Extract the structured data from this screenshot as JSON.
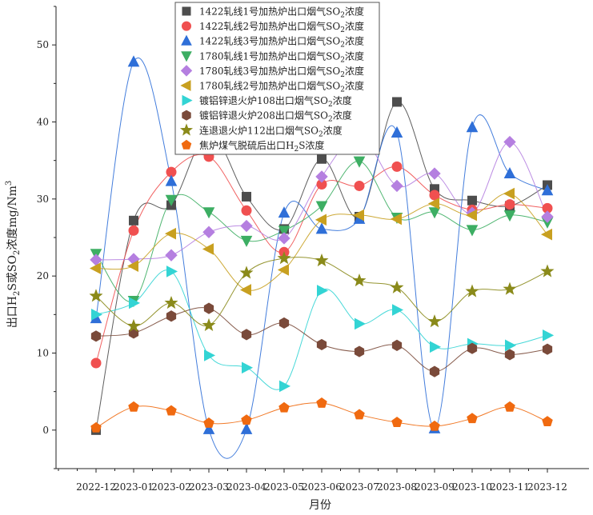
{
  "chart_data": {
    "type": "line",
    "categories": [
      "2022-12",
      "2023-01",
      "2023-02",
      "2023-03",
      "2023-04",
      "2023-05",
      "2023-06",
      "2023-07",
      "2023-08",
      "2023-09",
      "2023-10",
      "2023-11",
      "2023-12"
    ],
    "xlabel": "月份",
    "ylabel": "出口H2S或SO2浓度mg/Nm3",
    "ylabel_parts": {
      "p1": "出口H",
      "s1": "2",
      "p2": "S或SO",
      "s2": "2",
      "p3": "浓度mg/Nm",
      "s3": "3"
    },
    "ylim": [
      -5,
      55
    ],
    "yticks": [
      0,
      10,
      20,
      30,
      40,
      50
    ],
    "grid": false,
    "smooth": true,
    "legend_position": "top",
    "series": [
      {
        "name": "1422轧线1号加热炉出口烟气SO2浓度",
        "legend": {
          "pre": "1422轧线1号加热炉出口烟气SO",
          "sub": "2",
          "post": "浓度"
        },
        "color": "#4d4d4d",
        "marker": "square",
        "values": [
          0,
          27.2,
          29.2,
          38.6,
          30.3,
          26.1,
          35.2,
          27.7,
          42.6,
          31.3,
          29.8,
          29.1,
          31.8
        ]
      },
      {
        "name": "1422轧线2号加热炉出口烟气SO2浓度",
        "legend": {
          "pre": "1422轧线2号加热炉出口烟气SO",
          "sub": "2",
          "post": "浓度"
        },
        "color": "#f05050",
        "marker": "circle",
        "values": [
          8.7,
          25.9,
          33.5,
          35.5,
          28.5,
          23.1,
          31.9,
          31.7,
          34.2,
          30.5,
          28.6,
          29.3,
          28.8
        ]
      },
      {
        "name": "1422轧线3号加热炉出口烟气SO2浓度",
        "legend": {
          "pre": "1422轧线3号加热炉出口烟气SO",
          "sub": "2",
          "post": "浓度"
        },
        "color": "#2f6fd8",
        "marker": "triangle-up",
        "values": [
          14.5,
          47.8,
          32.3,
          0.1,
          0.1,
          28.2,
          26.1,
          27.4,
          38.6,
          0.2,
          39.3,
          33.3,
          31.1
        ]
      },
      {
        "name": "1780轧线1号加热炉出口烟气SO2浓度",
        "legend": {
          "pre": "1780轧线1号加热炉出口烟气SO",
          "sub": "2",
          "post": "浓度"
        },
        "color": "#3dae63",
        "marker": "triangle-down",
        "values": [
          22.9,
          16.8,
          29.9,
          28.3,
          24.6,
          25.9,
          29.1,
          34.9,
          27.6,
          28.3,
          26.0,
          27.9,
          27.0
        ]
      },
      {
        "name": "1780轧线3号加热炉出口烟气SO2浓度",
        "legend": {
          "pre": "1780轧线3号加热炉出口烟气SO",
          "sub": "2",
          "post": "浓度"
        },
        "color": "#b57fe0",
        "marker": "diamond",
        "values": [
          22.1,
          22.2,
          22.7,
          25.7,
          26.5,
          24.9,
          32.9,
          38.2,
          31.7,
          33.3,
          28.2,
          37.4,
          27.7
        ]
      },
      {
        "name": "1780轧线2号加热炉出口烟气SO2浓度",
        "legend": {
          "pre": "1780轧线2号加热炉出口烟气SO",
          "sub": "2",
          "post": "浓度"
        },
        "color": "#c8a020",
        "marker": "triangle-left",
        "values": [
          21.0,
          21.3,
          25.5,
          23.5,
          18.2,
          20.8,
          27.3,
          27.9,
          27.4,
          29.4,
          27.9,
          30.7,
          25.4
        ]
      },
      {
        "name": "镀铝锌退火炉108出口烟气SO2浓度",
        "legend": {
          "pre": "镀铝锌退火炉108出口烟气SO",
          "sub": "2",
          "post": "浓度"
        },
        "color": "#33d4d4",
        "marker": "triangle-right",
        "values": [
          15.0,
          16.5,
          20.6,
          9.7,
          8.1,
          5.7,
          18.1,
          13.8,
          15.6,
          10.8,
          11.2,
          11.0,
          12.3
        ]
      },
      {
        "name": "镀铝锌退火炉208出口烟气SO2浓度",
        "legend": {
          "pre": "镀铝锌退火炉208出口烟气SO",
          "sub": "2",
          "post": "浓度"
        },
        "color": "#7a4a3a",
        "marker": "hexagon",
        "values": [
          12.2,
          12.6,
          14.8,
          15.8,
          12.4,
          13.9,
          11.1,
          10.2,
          11.0,
          7.6,
          10.6,
          9.8,
          10.5
        ]
      },
      {
        "name": "连退退火炉112出口烟气SO2浓度",
        "legend": {
          "pre": "连退退火炉112出口烟气SO",
          "sub": "2",
          "post": "浓度"
        },
        "color": "#8a8a1a",
        "marker": "star",
        "values": [
          17.4,
          13.5,
          16.5,
          13.6,
          20.4,
          22.3,
          22.0,
          19.4,
          18.5,
          14.1,
          18.0,
          18.3,
          20.6
        ]
      },
      {
        "name": "焦炉煤气脱硫后出口H2S浓度",
        "legend": {
          "pre": "焦炉煤气脱硫后出口H",
          "sub": "2",
          "post": "S浓度"
        },
        "color": "#f06a10",
        "marker": "pentagon",
        "values": [
          0.3,
          3.0,
          2.5,
          0.9,
          1.3,
          2.9,
          3.5,
          2.0,
          1.0,
          0.5,
          1.5,
          3.0,
          1.1
        ]
      }
    ]
  }
}
